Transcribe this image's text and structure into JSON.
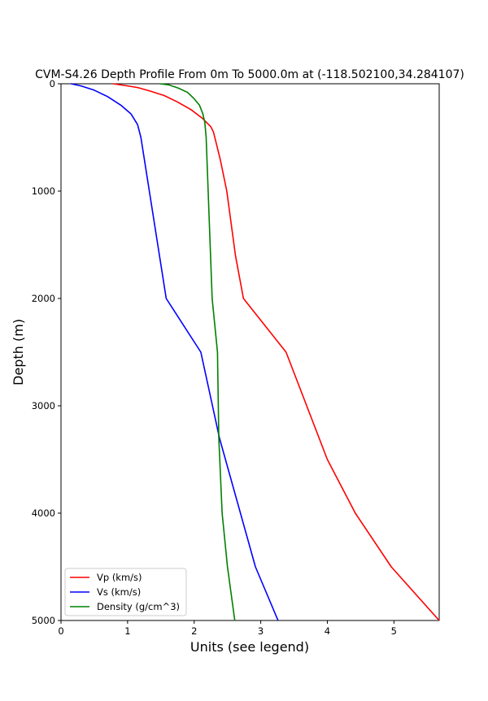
{
  "chart_data": {
    "type": "line",
    "title": "CVM-S4.26 Depth Profile From 0m To 5000.0m at (-118.502100,34.284107)",
    "xlabel": "Units (see legend)",
    "ylabel": "Depth (m)",
    "xlim": [
      0,
      5.68
    ],
    "ylim": [
      5000,
      0
    ],
    "y_inverted": true,
    "grid": false,
    "legend_position": "lower-left",
    "x_ticks": [
      "0",
      "1",
      "2",
      "3",
      "4",
      "5"
    ],
    "y_ticks": [
      "0",
      "1000",
      "2000",
      "3000",
      "4000",
      "5000"
    ],
    "series": [
      {
        "name": "Vp (km/s)",
        "color": "#ff0000",
        "x": [
          0.78,
          0.95,
          1.15,
          1.35,
          1.55,
          1.75,
          1.95,
          2.12,
          2.25,
          2.29,
          2.39,
          2.49,
          2.62,
          2.74,
          3.38,
          4.0,
          4.42,
          4.96,
          5.68
        ],
        "y": [
          0,
          15,
          35,
          70,
          110,
          170,
          240,
          320,
          400,
          450,
          700,
          1000,
          1600,
          2000,
          2500,
          3500,
          4000,
          4500,
          5000
        ]
      },
      {
        "name": "Vs (km/s)",
        "color": "#0000ff",
        "x": [
          0.15,
          0.3,
          0.5,
          0.7,
          0.9,
          1.05,
          1.15,
          1.2,
          1.58,
          2.1,
          2.38,
          2.92,
          3.26
        ],
        "y": [
          0,
          20,
          60,
          120,
          200,
          280,
          380,
          500,
          2000,
          2500,
          3300,
          4500,
          5000
        ]
      },
      {
        "name": "Density (g/cm^3)",
        "color": "#008000",
        "x": [
          1.48,
          1.62,
          1.76,
          1.9,
          2.0,
          2.08,
          2.13,
          2.16,
          2.18,
          2.27,
          2.35,
          2.37,
          2.42,
          2.5,
          2.61
        ],
        "y": [
          0,
          10,
          40,
          80,
          140,
          200,
          280,
          360,
          500,
          2000,
          2500,
          3300,
          4000,
          4500,
          5000
        ]
      }
    ]
  }
}
